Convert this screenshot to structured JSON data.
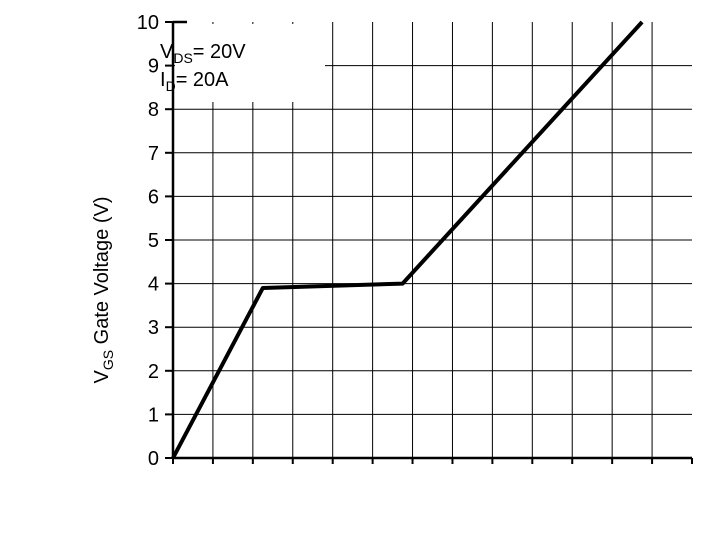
{
  "chart_data": {
    "type": "line",
    "title": "",
    "xlabel": "",
    "ylabel": "VGS Gate Voltage (V)",
    "ylabel_main": "V",
    "ylabel_sub": "GS",
    "ylabel_rest": " Gate Voltage (V)",
    "ylim": [
      0,
      10
    ],
    "xlim": [
      0,
      26
    ],
    "y_ticks": [
      "0",
      "1",
      "2",
      "3",
      "4",
      "5",
      "6",
      "7",
      "8",
      "9",
      "10"
    ],
    "annotation": {
      "line1_main": "V",
      "line1_sub": "DS",
      "line1_rest": "= 20V",
      "line2_main": "I",
      "line2_sub": "D",
      "line2_rest": "= 20A"
    },
    "grid": true,
    "series": [
      {
        "x": [
          0,
          4.5,
          11.5,
          23.5
        ],
        "y": [
          0,
          3.9,
          4.0,
          10.0
        ]
      }
    ],
    "colors": {
      "line": "#000000",
      "grid": "#000000",
      "background": "#ffffff"
    }
  }
}
